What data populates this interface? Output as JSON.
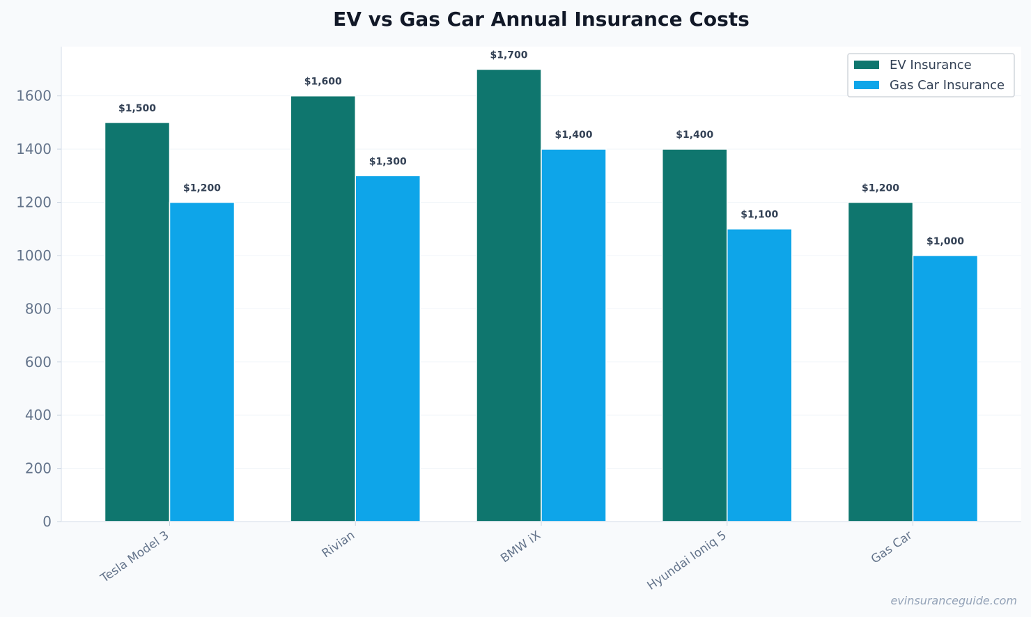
{
  "chart_data": {
    "type": "bar",
    "title": "EV vs Gas Car Annual Insurance Costs",
    "xlabel": "",
    "ylabel": "",
    "categories": [
      "Tesla Model 3",
      "Rivian",
      "BMW iX",
      "Hyundai Ioniq 5",
      "Gas Car"
    ],
    "series": [
      {
        "name": "EV Insurance",
        "color": "#0f766e",
        "values": [
          1500,
          1600,
          1700,
          1400,
          1200
        ],
        "labels": [
          "$1,500",
          "$1,600",
          "$1,700",
          "$1,400",
          "$1,200"
        ]
      },
      {
        "name": "Gas Car Insurance",
        "color": "#0ea5e9",
        "values": [
          1200,
          1300,
          1400,
          1100,
          1000
        ],
        "labels": [
          "$1,200",
          "$1,300",
          "$1,400",
          "$1,100",
          "$1,000"
        ]
      }
    ],
    "yticks": [
      0,
      200,
      400,
      600,
      800,
      1000,
      1200,
      1400,
      1600
    ],
    "ylim": [
      0,
      1785
    ],
    "grid": true,
    "legend_position": "top-right"
  },
  "source": "evinsuranceguide.com"
}
